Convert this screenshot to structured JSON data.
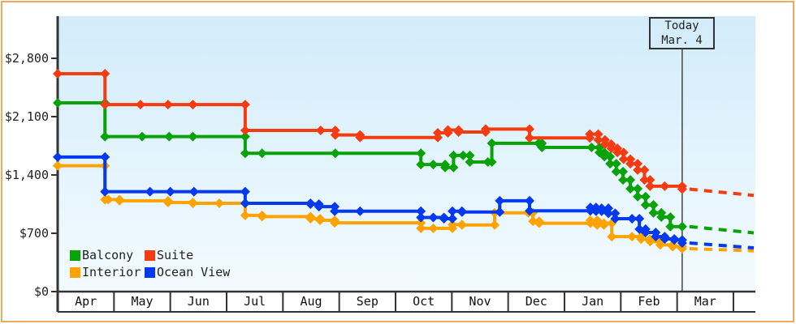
{
  "chart_data": {
    "type": "line",
    "months": [
      "Apr",
      "May",
      "Jun",
      "Jul",
      "Aug",
      "Sep",
      "Oct",
      "Nov",
      "Dec",
      "Jan",
      "Feb",
      "Mar"
    ],
    "y_ticks": [
      {
        "label": "$0",
        "value": 0
      },
      {
        "label": "$700",
        "value": 700
      },
      {
        "label": "$1,400",
        "value": 1400
      },
      {
        "label": "$2,100",
        "value": 2100
      },
      {
        "label": "$2,800",
        "value": 2800
      }
    ],
    "ylim": [
      0,
      3300
    ],
    "grid": false,
    "legend_position": "bottom-left",
    "today": {
      "line1": "Today",
      "line2": "Mar. 4",
      "month_frac": 11.09
    },
    "series": [
      {
        "name": "Balcony",
        "color": "#09a309",
        "points": [
          [
            0,
            2265
          ],
          [
            0.84,
            1860
          ],
          [
            1.5,
            1860
          ],
          [
            1.98,
            1860
          ],
          [
            2.4,
            1860
          ],
          [
            3.33,
            1660
          ],
          [
            3.63,
            1660
          ],
          [
            4.93,
            1660
          ],
          [
            6.45,
            1525
          ],
          [
            6.67,
            1525
          ],
          [
            6.88,
            1490
          ],
          [
            7.03,
            1635
          ],
          [
            7.2,
            1635
          ],
          [
            7.32,
            1555
          ],
          [
            7.64,
            1555
          ],
          [
            7.71,
            1780
          ],
          [
            8.54,
            1780
          ],
          [
            8.6,
            1730
          ],
          [
            9.48,
            1730
          ],
          [
            9.62,
            1670
          ],
          [
            9.71,
            1620
          ],
          [
            9.81,
            1535
          ],
          [
            9.92,
            1440
          ],
          [
            10.04,
            1340
          ],
          [
            10.17,
            1235
          ],
          [
            10.3,
            1140
          ],
          [
            10.44,
            1040
          ],
          [
            10.58,
            945
          ],
          [
            10.72,
            895
          ],
          [
            10.88,
            780
          ],
          [
            11.09,
            780
          ]
        ],
        "today_price": 780,
        "forecast_end_price": 705
      },
      {
        "name": "Suite",
        "color": "#f53b10",
        "points": [
          [
            0,
            2615
          ],
          [
            0.84,
            2245
          ],
          [
            1.47,
            2245
          ],
          [
            1.96,
            2245
          ],
          [
            2.4,
            2245
          ],
          [
            3.33,
            1935
          ],
          [
            4.67,
            1935
          ],
          [
            4.93,
            1880
          ],
          [
            5.37,
            1850
          ],
          [
            6.75,
            1905
          ],
          [
            6.93,
            1940
          ],
          [
            7.12,
            1915
          ],
          [
            7.6,
            1950
          ],
          [
            8.38,
            1845
          ],
          [
            9.45,
            1890
          ],
          [
            9.6,
            1820
          ],
          [
            9.72,
            1770
          ],
          [
            9.83,
            1720
          ],
          [
            9.94,
            1670
          ],
          [
            10.05,
            1590
          ],
          [
            10.17,
            1535
          ],
          [
            10.3,
            1460
          ],
          [
            10.42,
            1340
          ],
          [
            10.52,
            1265
          ],
          [
            10.78,
            1265
          ],
          [
            11.09,
            1230
          ]
        ],
        "today_price": 1230,
        "forecast_end_price": 1155
      },
      {
        "name": "Interior",
        "color": "#ffa303",
        "points": [
          [
            0,
            1510
          ],
          [
            0.84,
            1105
          ],
          [
            0.9,
            1105
          ],
          [
            1.1,
            1090
          ],
          [
            1.96,
            1070
          ],
          [
            2.4,
            1060
          ],
          [
            2.87,
            1060
          ],
          [
            3.33,
            915
          ],
          [
            3.63,
            900
          ],
          [
            4.49,
            875
          ],
          [
            4.66,
            855
          ],
          [
            4.92,
            825
          ],
          [
            6.45,
            760
          ],
          [
            6.67,
            760
          ],
          [
            7.01,
            805
          ],
          [
            7.18,
            800
          ],
          [
            7.76,
            945
          ],
          [
            8.36,
            945
          ],
          [
            8.44,
            845
          ],
          [
            8.55,
            820
          ],
          [
            9.46,
            855
          ],
          [
            9.58,
            800
          ],
          [
            9.7,
            820
          ],
          [
            9.84,
            660
          ],
          [
            10.2,
            660
          ],
          [
            10.36,
            630
          ],
          [
            10.52,
            600
          ],
          [
            10.7,
            560
          ],
          [
            10.92,
            540
          ],
          [
            11.09,
            515
          ]
        ],
        "today_price": 515,
        "forecast_end_price": 490
      },
      {
        "name": "Ocean View",
        "color": "#0439f0",
        "points": [
          [
            0,
            1615
          ],
          [
            0.84,
            1200
          ],
          [
            1.64,
            1200
          ],
          [
            2,
            1200
          ],
          [
            2.42,
            1200
          ],
          [
            3.33,
            1060
          ],
          [
            4.49,
            1050
          ],
          [
            4.64,
            1020
          ],
          [
            4.92,
            965
          ],
          [
            5.37,
            965
          ],
          [
            6.45,
            890
          ],
          [
            6.67,
            890
          ],
          [
            6.86,
            875
          ],
          [
            7.01,
            965
          ],
          [
            7.18,
            955
          ],
          [
            7.85,
            1090
          ],
          [
            8.38,
            970
          ],
          [
            9.46,
            1010
          ],
          [
            9.56,
            965
          ],
          [
            9.66,
            1000
          ],
          [
            9.78,
            940
          ],
          [
            9.9,
            875
          ],
          [
            10.2,
            875
          ],
          [
            10.33,
            750
          ],
          [
            10.44,
            710
          ],
          [
            10.62,
            660
          ],
          [
            10.78,
            632
          ],
          [
            10.95,
            620
          ],
          [
            11.09,
            583
          ]
        ],
        "today_price": 583,
        "forecast_end_price": 525
      }
    ],
    "colors": {
      "plot_bg_top": "#d2ecfa",
      "plot_bg_bottom": "#f3fbff",
      "axis": "#333333",
      "frame_border": "#ecaa60",
      "text": "#222222"
    }
  }
}
